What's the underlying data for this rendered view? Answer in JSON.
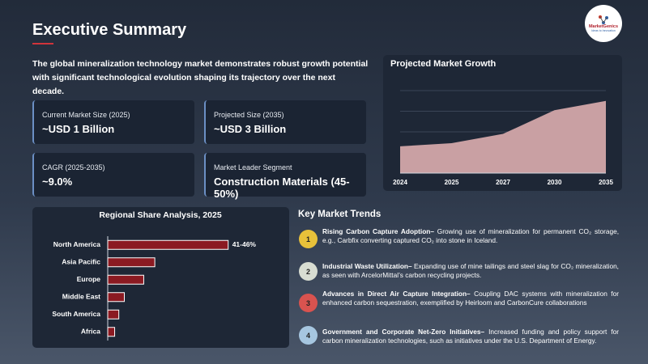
{
  "header": {
    "title": "Executive Summary",
    "logo": "MarketGenics",
    "logo_tagline": "Ideas to Innovation"
  },
  "intro": "The global mineralization technology market demonstrates robust growth potential with significant technological evolution shaping its trajectory over the next decade.",
  "kpis": [
    {
      "label": "Current Market Size (2025)",
      "value": "~USD 1 Billion"
    },
    {
      "label": "Projected Size (2035)",
      "value": "~USD 3 Billion"
    },
    {
      "label": "CAGR (2025-2035)",
      "value": "~9.0%"
    },
    {
      "label": "Market Leader Segment",
      "value": "Construction Materials (45-50%)"
    }
  ],
  "trends_title": "Key Market Trends",
  "trends": [
    {
      "number": "1",
      "heading": "Rising Carbon Capture Adoption–",
      "body": " Growing use of mineralization for permanent CO₂ storage, e.g., Carbfix converting captured CO₂ into stone in Iceland."
    },
    {
      "number": "2",
      "heading": "Industrial Waste Utilization–",
      "body": " Expanding use of mine tailings and steel slag for CO₂ mineralization, as seen with ArcelorMittal’s carbon recycling projects."
    },
    {
      "number": "3",
      "heading": "Advances in Direct Air Capture Integration–",
      "body": " Coupling DAC systems with mineralization for enhanced carbon sequestration, exemplified by Heirloom and CarbonCure collaborations"
    },
    {
      "number": "4",
      "heading": "Government and Corporate Net-Zero Initiatives–",
      "body": " Increased funding and policy support for carbon mineralization technologies, such as initiatives under the U.S. Department of Energy."
    }
  ],
  "chart_data": [
    {
      "type": "area",
      "title": "Projected Market Growth",
      "categories": [
        "2024",
        "2025",
        "2027",
        "2030",
        "2035"
      ],
      "values": [
        1.3,
        1.45,
        1.9,
        3.05,
        3.5
      ],
      "color": "#c9a0a3",
      "ylim": [
        0,
        4
      ],
      "grid": true
    },
    {
      "type": "hbar",
      "title": "Regional Share Analysis, 2025",
      "categories": [
        "North America",
        "Asia Pacific",
        "Europe",
        "Middle East",
        "South America",
        "Africa"
      ],
      "values": [
        43.5,
        17,
        13,
        6,
        4,
        2.5
      ],
      "value_labels": [
        "41-46%",
        null,
        null,
        null,
        null,
        null
      ],
      "color": "#8b1a22",
      "xlim": [
        0,
        55
      ]
    }
  ]
}
